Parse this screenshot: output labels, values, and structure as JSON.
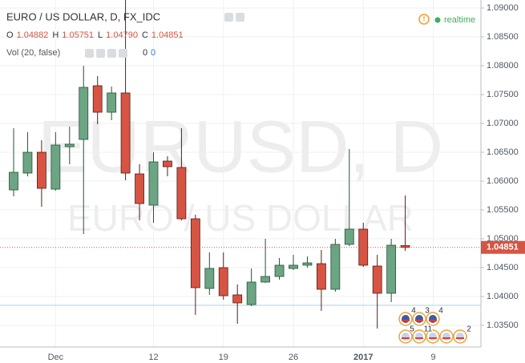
{
  "chart_data": {
    "type": "candlestick",
    "title": "EURO / US DOLLAR, D, FX_IDC",
    "watermark": "EURUSD, D",
    "watermark_subtitle": "EURO / US DOLLAR",
    "status": "realtime",
    "ohlc_header": [
      {
        "key": "O",
        "text": "1.04882"
      },
      {
        "key": "H",
        "text": "1.05751"
      },
      {
        "key": "L",
        "text": "1.04790"
      },
      {
        "key": "C",
        "text": "1.04851"
      }
    ],
    "volume_header": {
      "label": "Vol (20, false)",
      "values": [
        "0",
        "0"
      ]
    },
    "categories": [
      null,
      null,
      null,
      "Dec",
      null,
      null,
      null,
      null,
      null,
      null,
      "12",
      null,
      null,
      null,
      null,
      "19",
      null,
      null,
      null,
      null,
      "26",
      null,
      null,
      null,
      null,
      "2017",
      null,
      null,
      null,
      null,
      "9"
    ],
    "open": [
      1.05847,
      1.06139,
      1.065,
      1.05861,
      1.06597,
      1.06722,
      1.07653,
      1.07194,
      1.07528,
      1.06125,
      1.05583,
      1.06347,
      1.06236,
      1.05347,
      1.04139,
      1.045,
      1.04028,
      1.03861,
      1.0425,
      1.04347,
      1.04486,
      1.04542,
      1.04569,
      1.04125,
      1.04903,
      1.05167,
      1.04528,
      1.04056,
      1.04882,
      null,
      null
    ],
    "high": [
      1.06917,
      1.06847,
      1.06708,
      1.06847,
      1.06944,
      1.08,
      1.07819,
      1.07639,
      1.09139,
      1.06292,
      1.065,
      1.06431,
      1.06917,
      1.05417,
      1.04764,
      1.04764,
      1.04208,
      1.04486,
      1.05,
      1.04667,
      1.04722,
      1.04694,
      1.04806,
      1.05,
      1.06556,
      1.05278,
      1.04722,
      1.05,
      1.05751,
      null,
      null
    ],
    "low": [
      1.05736,
      1.06083,
      1.05556,
      1.05833,
      1.06292,
      1.05083,
      1.06986,
      1.07056,
      1.06014,
      1.05319,
      1.05278,
      1.06083,
      1.05319,
      1.03681,
      1.04028,
      1.03944,
      1.03528,
      1.03833,
      1.04236,
      1.04292,
      1.04458,
      1.045,
      1.0375,
      1.04083,
      1.04875,
      1.04514,
      1.03444,
      1.03903,
      1.0479,
      null,
      null
    ],
    "close": [
      1.06153,
      1.065,
      1.05875,
      1.06625,
      1.06639,
      1.07625,
      1.07194,
      1.07528,
      1.06139,
      1.05611,
      1.06333,
      1.0625,
      1.05347,
      1.04153,
      1.04486,
      1.04014,
      1.03889,
      1.0425,
      1.04347,
      1.04542,
      1.04542,
      1.04583,
      1.04125,
      1.04903,
      1.05167,
      1.04542,
      1.04056,
      1.04889,
      1.04851,
      null,
      null
    ],
    "up_color": "#6ba583",
    "down_color": "#d75442",
    "ylim": [
      1.03125,
      1.09139
    ],
    "yticks": [
      {
        "value": 1.09,
        "label": "1.09000"
      },
      {
        "value": 1.085,
        "label": "1.08500"
      },
      {
        "value": 1.08,
        "label": "1.08000"
      },
      {
        "value": 1.075,
        "label": "1.07500"
      },
      {
        "value": 1.07,
        "label": "1.07000"
      },
      {
        "value": 1.065,
        "label": "1.06500"
      },
      {
        "value": 1.06,
        "label": "1.06000"
      },
      {
        "value": 1.055,
        "label": "1.05500"
      },
      {
        "value": 1.05,
        "label": "1.05000"
      },
      {
        "value": 1.045,
        "label": "1.04500"
      },
      {
        "value": 1.04,
        "label": "1.04000"
      },
      {
        "value": 1.035,
        "label": "1.03500"
      }
    ],
    "grid": true,
    "horizontal_line": {
      "value": 1.03847,
      "color": "#a9d5ea"
    },
    "events": [
      {
        "text": "4"
      },
      {
        "text": "3"
      },
      {
        "text": "4"
      },
      {
        "text": "5"
      },
      {
        "text": "11"
      },
      {
        "text": "2"
      }
    ]
  }
}
